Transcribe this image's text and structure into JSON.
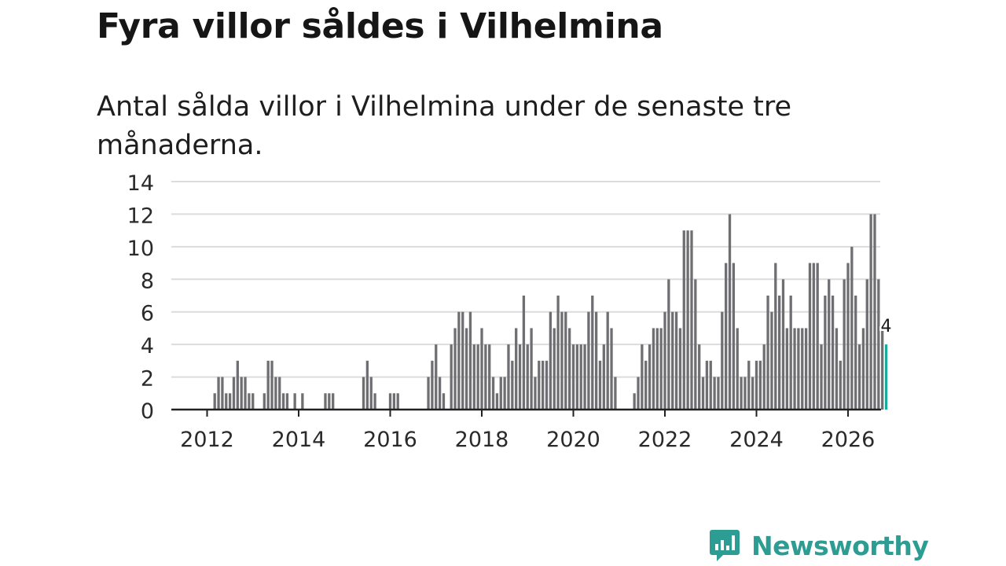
{
  "title": "Fyra villor såldes i Vilhelmina",
  "subtitle": "Antal sålda villor i Vilhelmina under de senaste tre månaderna.",
  "brand": {
    "name": "Newsworthy",
    "color": "#2d9c93"
  },
  "colors": {
    "bar": "#6f6f73",
    "highlight": "#1aa89a",
    "grid": "#dcdcdc",
    "axis": "#222222"
  },
  "chart_data": {
    "type": "bar",
    "title": "Fyra villor såldes i Vilhelmina",
    "xlabel": "",
    "ylabel": "",
    "x_start": 2012,
    "x_ticks": [
      2012,
      2014,
      2016,
      2018,
      2020,
      2022,
      2024,
      2026
    ],
    "x_tick_labels": [
      "2012",
      "2014",
      "2016",
      "2018",
      "2020",
      "2022",
      "2024",
      "2026"
    ],
    "ylim": [
      0,
      14
    ],
    "y_ticks": [
      0,
      2,
      4,
      6,
      8,
      10,
      12,
      14
    ],
    "y_tick_labels": [
      "0",
      "2",
      "4",
      "6",
      "8",
      "10",
      "12",
      "14"
    ],
    "grid": true,
    "series": [
      {
        "name": "Sålda villor",
        "start_year": 2012,
        "start_month": 1,
        "values": [
          0,
          0,
          1,
          2,
          2,
          1,
          1,
          2,
          3,
          2,
          2,
          1,
          1,
          0,
          0,
          1,
          3,
          3,
          2,
          2,
          1,
          1,
          0,
          1,
          0,
          1,
          0,
          0,
          0,
          0,
          0,
          1,
          1,
          1,
          0,
          0,
          0,
          0,
          0,
          0,
          0,
          2,
          3,
          2,
          1,
          0,
          0,
          0,
          1,
          1,
          1,
          0,
          0,
          0,
          0,
          0,
          0,
          0,
          2,
          3,
          4,
          2,
          1,
          0,
          4,
          5,
          6,
          6,
          5,
          6,
          4,
          4,
          5,
          4,
          4,
          2,
          1,
          2,
          2,
          4,
          3,
          5,
          4,
          7,
          4,
          5,
          2,
          3,
          3,
          3,
          6,
          5,
          7,
          6,
          6,
          5,
          4,
          4,
          4,
          4,
          6,
          7,
          6,
          3,
          4,
          6,
          5,
          2,
          0,
          0,
          0,
          0,
          1,
          2,
          4,
          3,
          4,
          5,
          5,
          5,
          6,
          8,
          6,
          6,
          5,
          11,
          11,
          11,
          8,
          4,
          2,
          3,
          3,
          2,
          2,
          6,
          9,
          12,
          9,
          5,
          2,
          2,
          3,
          2,
          3,
          3,
          4,
          7,
          6,
          9,
          7,
          8,
          5,
          7,
          5,
          5,
          5,
          5,
          9,
          9,
          9,
          4,
          7,
          8,
          7,
          5,
          3,
          8,
          9,
          10,
          7,
          4,
          5,
          8,
          12,
          12,
          8,
          5,
          4
        ]
      }
    ],
    "last_value_label": "4",
    "highlight_last": true
  }
}
